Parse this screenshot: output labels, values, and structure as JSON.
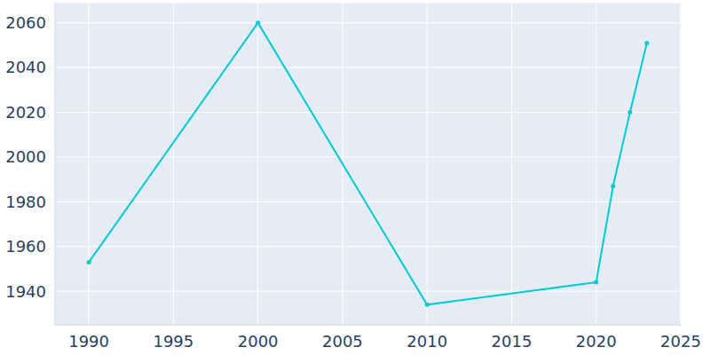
{
  "chart_data": {
    "type": "line",
    "x": [
      1990,
      2000,
      2010,
      2020,
      2021,
      2022,
      2023
    ],
    "values": [
      1953,
      2060,
      1934,
      1944,
      1987,
      2020,
      2051
    ],
    "color": "#00cbd0",
    "marker": "circle",
    "xlim": [
      1988,
      2025
    ],
    "xticks": [
      1990,
      1995,
      2000,
      2005,
      2010,
      2015,
      2020,
      2025
    ],
    "ylim": [
      1925,
      2069
    ],
    "yticks": [
      1940,
      1960,
      1980,
      2000,
      2020,
      2040,
      2060
    ],
    "grid": true
  }
}
